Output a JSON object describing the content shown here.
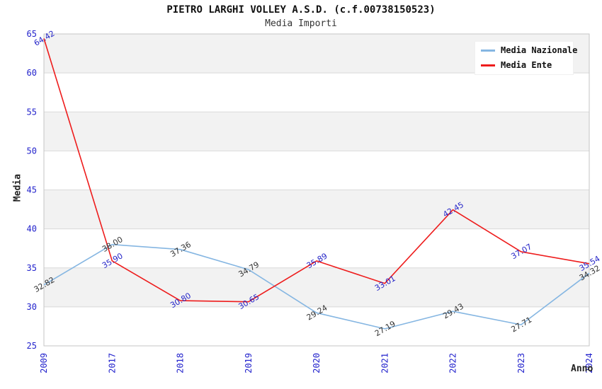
{
  "chart_data": {
    "type": "line",
    "title": "PIETRO LARGHI VOLLEY A.S.D. (c.f.00738150523)",
    "subtitle": "Media Importi",
    "xlabel": "Anno",
    "ylabel": "Media",
    "categories": [
      "2009",
      "2017",
      "2018",
      "2019",
      "2020",
      "2021",
      "2022",
      "2023",
      "2024"
    ],
    "ylim": [
      25,
      65
    ],
    "y_tick_step": 5,
    "grid": true,
    "legend_position": "top-right",
    "series": [
      {
        "name": "Media Nazionale",
        "color": "#85b6e2",
        "label_color": "#333333",
        "values": [
          32.82,
          38.0,
          37.36,
          34.79,
          29.24,
          27.19,
          29.43,
          27.71,
          34.32
        ]
      },
      {
        "name": "Media Ente",
        "color": "#ee1c1c",
        "label_color": "#2424c8",
        "values": [
          64.42,
          35.9,
          30.8,
          30.65,
          35.89,
          33.01,
          42.45,
          37.07,
          35.54
        ]
      }
    ],
    "colors": {
      "tick_label": "#2222cc",
      "band": "#f2f2f2",
      "grid_line": "#d9d9d9",
      "frame": "#c6c6c6",
      "title_text": "#111111"
    }
  }
}
